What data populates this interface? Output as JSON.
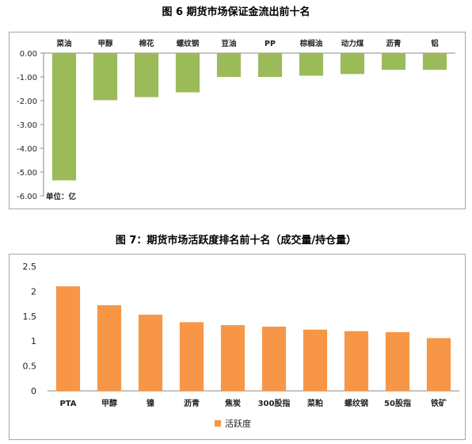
{
  "chart_data": [
    {
      "type": "bar",
      "title": "图 6 期货市场保证金流出前十名",
      "categories": [
        "菜油",
        "甲醇",
        "棉花",
        "螺纹钢",
        "豆油",
        "PP",
        "棕榈油",
        "动力煤",
        "沥青",
        "铝"
      ],
      "values": [
        -5.35,
        -1.98,
        -1.85,
        -1.65,
        -1.0,
        -1.0,
        -0.95,
        -0.88,
        -0.7,
        -0.7
      ],
      "ylim": [
        -6,
        0
      ],
      "yticks": [
        "0.00",
        "-1.00",
        "-2.00",
        "-3.00",
        "-4.00",
        "-5.00",
        "-6.00"
      ],
      "annotation": "单位：亿",
      "color": "#9bbb59",
      "grid": false,
      "legend": "none"
    },
    {
      "type": "bar",
      "title": "图 7：期货市场活跃度排名前十名（成交量/持仓量）",
      "categories": [
        "PTA",
        "甲醇",
        "镍",
        "沥青",
        "焦炭",
        "300股指",
        "菜粕",
        "螺纹钢",
        "50股指",
        "铁矿"
      ],
      "series": [
        {
          "name": "活跃度",
          "values": [
            2.1,
            1.72,
            1.53,
            1.38,
            1.32,
            1.29,
            1.23,
            1.2,
            1.18,
            1.06
          ]
        }
      ],
      "ylim": [
        0,
        2.5
      ],
      "yticks": [
        "0",
        "0.5",
        "1",
        "1.5",
        "2",
        "2.5"
      ],
      "color": "#f79646",
      "grid": false,
      "legend": "bottom"
    }
  ]
}
